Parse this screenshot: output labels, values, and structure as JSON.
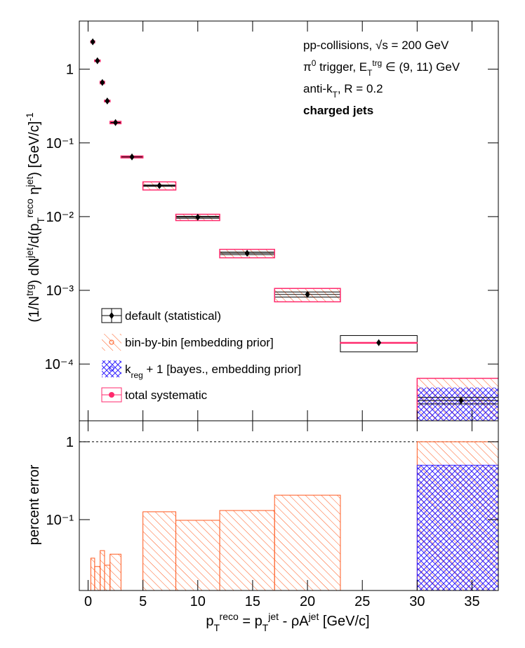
{
  "chart_data": {
    "type": "binned-spectrum",
    "x_title": [
      {
        "text": "p"
      },
      {
        "text": "T",
        "pos": "sub"
      },
      {
        "text": "reco",
        "pos": "sup"
      },
      {
        "text": " = p"
      },
      {
        "text": "T",
        "pos": "sub"
      },
      {
        "text": "jet",
        "pos": "sup"
      },
      {
        "text": " - ρA"
      },
      {
        "text": "jet",
        "pos": "sup"
      },
      {
        "text": " [GeV/c]"
      }
    ],
    "y_title": [
      {
        "text": "(1/N"
      },
      {
        "text": "trg",
        "pos": "sup"
      },
      {
        "text": ") dN"
      },
      {
        "text": "jet",
        "pos": "sup"
      },
      {
        "text": "/d(p"
      },
      {
        "text": "T",
        "pos": "sub"
      },
      {
        "text": "reco",
        "pos": "sup"
      },
      {
        "text": " η"
      },
      {
        "text": "jet",
        "pos": "sup"
      },
      {
        "text": ") [GeV/c]"
      },
      {
        "text": "-1",
        "pos": "sup"
      }
    ],
    "y2_title": [
      {
        "text": "percent error"
      }
    ],
    "annotations": [
      {
        "segments": [
          {
            "text": "pp-collisions, √s = 200 GeV"
          }
        ],
        "bold": false
      },
      {
        "segments": [
          {
            "text": "π"
          },
          {
            "text": "0",
            "pos": "sup"
          },
          {
            "text": " trigger, E"
          },
          {
            "text": "T",
            "pos": "sub"
          },
          {
            "text": "trg",
            "pos": "sup"
          },
          {
            "text": " ∈ (9, 11) GeV"
          }
        ],
        "bold": false
      },
      {
        "segments": [
          {
            "text": "anti-k"
          },
          {
            "text": "T",
            "pos": "sub"
          },
          {
            "text": ", R = 0.2"
          }
        ],
        "bold": false
      },
      {
        "segments": [
          {
            "text": "charged jets"
          }
        ],
        "bold": true
      }
    ],
    "legend": [
      [
        {
          "text": "default (statistical)"
        }
      ],
      [
        {
          "text": "bin-by-bin [embedding prior]"
        }
      ],
      [
        {
          "text": "k"
        },
        {
          "text": "reg",
          "pos": "sub"
        },
        {
          "text": " + 1 [bayes., embedding prior]"
        }
      ],
      [
        {
          "text": "total systematic"
        }
      ]
    ],
    "colors": {
      "stat": "#000000",
      "bbb": "#ff5a1f",
      "bayes": "#3322ff",
      "total": "#ff2a6d"
    },
    "bin_edges": [
      0.25,
      0.6,
      1.1,
      1.5,
      2,
      3,
      5,
      8,
      12,
      17,
      23,
      30,
      38
    ],
    "values": [
      2.35,
      1.3,
      0.66,
      0.37,
      0.189,
      0.0645,
      0.0263,
      0.0098,
      0.00318,
      0.00088,
      0.000195,
      3.2e-05
    ],
    "stat_rel": [
      0.01,
      0.01,
      0.01,
      0.01,
      0.01,
      0.02,
      0.02,
      0.03,
      0.04,
      0.08,
      0.25,
      0.1
    ],
    "syst_bbb_rel": [
      0.032,
      0.025,
      0.04,
      0.026,
      0.036,
      null,
      0.126,
      0.098,
      0.131,
      0.206,
      null,
      1.0
    ],
    "syst_bayes_rel": [
      null,
      null,
      null,
      null,
      null,
      null,
      null,
      null,
      null,
      null,
      null,
      0.5
    ],
    "syst_total_rel": [
      0.032,
      0.025,
      0.04,
      0.026,
      0.036,
      0.03,
      0.126,
      0.098,
      0.131,
      0.206,
      0.005,
      1.0
    ],
    "reference_line": 1,
    "xlim": [
      -0.8,
      37.4
    ],
    "xticks": [
      0,
      5,
      10,
      15,
      20,
      25,
      30,
      35
    ],
    "log_y": true,
    "ylim": [
      1.7e-05,
      4.5
    ],
    "yticks": [
      {
        "value": 1,
        "label": "1"
      },
      {
        "value": 0.1,
        "label": "10⁻¹"
      },
      {
        "value": 0.01,
        "label": "10⁻²"
      },
      {
        "value": 0.001,
        "label": "10⁻³"
      },
      {
        "value": 0.0001,
        "label": "10⁻⁴"
      }
    ],
    "y2lim": [
      0.0123,
      1.86
    ],
    "y2ticks": [
      {
        "value": 1,
        "label": "1"
      },
      {
        "value": 0.1,
        "label": "10⁻¹"
      }
    ]
  }
}
